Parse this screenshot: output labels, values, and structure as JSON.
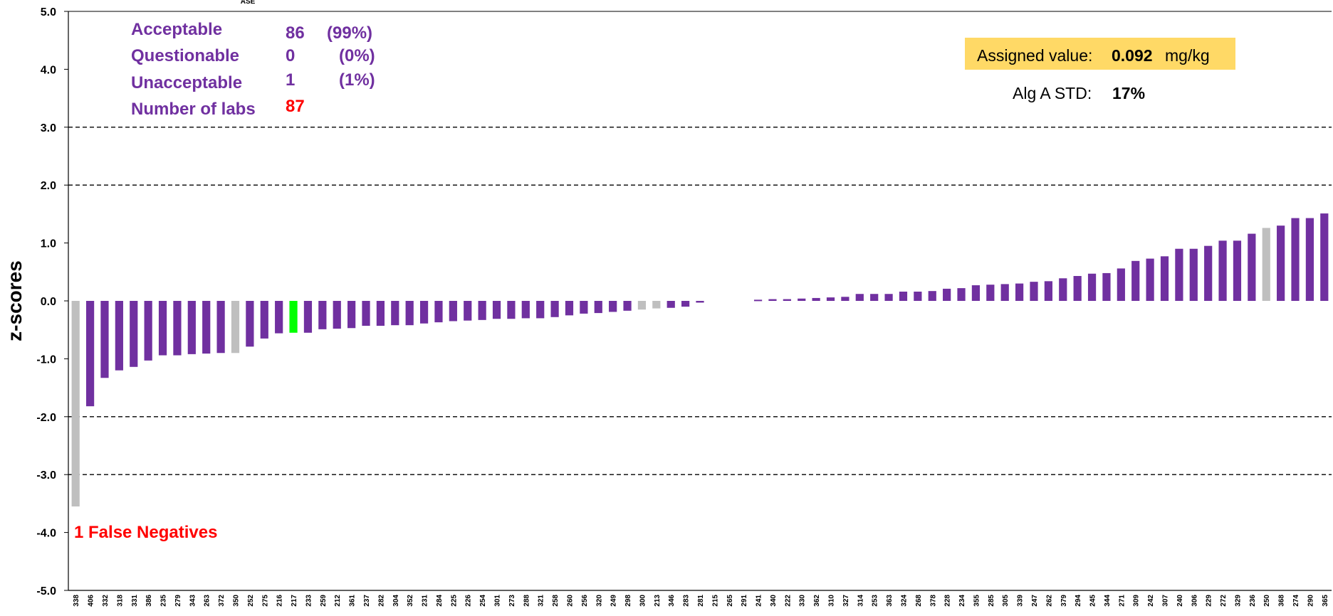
{
  "chart_data": {
    "type": "bar",
    "title": "ASE",
    "ylabel": "z-scores",
    "xlabel": "",
    "ylim": [
      -5.0,
      5.0
    ],
    "yticks": [
      "5.0",
      "4.0",
      "3.0",
      "2.0",
      "1.0",
      "0.0",
      "-1.0",
      "-2.0",
      "-3.0",
      "-4.0",
      "-5.0"
    ],
    "reference_lines": [
      3.0,
      2.0,
      -2.0,
      -3.0
    ],
    "colors": {
      "default": "#7030a0",
      "grey": "#bfbfbf",
      "highlight": "#00ff00"
    },
    "categories": [
      "338",
      "406",
      "332",
      "318",
      "331",
      "386",
      "235",
      "279",
      "343",
      "263",
      "372",
      "350",
      "252",
      "275",
      "216",
      "217",
      "233",
      "259",
      "212",
      "361",
      "237",
      "282",
      "304",
      "352",
      "231",
      "284",
      "225",
      "226",
      "254",
      "301",
      "273",
      "288",
      "321",
      "258",
      "260",
      "256",
      "320",
      "249",
      "298",
      "300",
      "213",
      "346",
      "283",
      "281",
      "215",
      "265",
      "291",
      "241",
      "340",
      "222",
      "330",
      "362",
      "310",
      "327",
      "314",
      "253",
      "363",
      "324",
      "268",
      "378",
      "228",
      "234",
      "355",
      "285",
      "305",
      "339",
      "247",
      "262",
      "379",
      "294",
      "245",
      "344",
      "271",
      "309",
      "242",
      "307",
      "240",
      "306",
      "229",
      "272",
      "329",
      "236",
      "250",
      "368",
      "274",
      "290",
      "365"
    ],
    "values": [
      -3.55,
      -1.82,
      -1.33,
      -1.2,
      -1.14,
      -1.03,
      -0.94,
      -0.94,
      -0.92,
      -0.91,
      -0.9,
      -0.9,
      -0.79,
      -0.65,
      -0.56,
      -0.55,
      -0.55,
      -0.49,
      -0.48,
      -0.47,
      -0.43,
      -0.43,
      -0.42,
      -0.42,
      -0.39,
      -0.37,
      -0.35,
      -0.34,
      -0.33,
      -0.31,
      -0.31,
      -0.3,
      -0.3,
      -0.28,
      -0.25,
      -0.22,
      -0.21,
      -0.19,
      -0.17,
      -0.15,
      -0.13,
      -0.12,
      -0.1,
      -0.03,
      0,
      0,
      0,
      0.02,
      0.03,
      0.03,
      0.04,
      0.05,
      0.06,
      0.07,
      0.12,
      0.12,
      0.12,
      0.16,
      0.16,
      0.17,
      0.21,
      0.22,
      0.27,
      0.28,
      0.29,
      0.3,
      0.33,
      0.34,
      0.39,
      0.43,
      0.47,
      0.48,
      0.56,
      0.69,
      0.73,
      0.77,
      0.9,
      0.9,
      0.95,
      1.04,
      1.04,
      1.16,
      1.26,
      1.3,
      1.43,
      1.43,
      1.51
    ],
    "bar_colors": [
      "grey",
      "default",
      "default",
      "default",
      "default",
      "default",
      "default",
      "default",
      "default",
      "default",
      "default",
      "grey",
      "default",
      "default",
      "default",
      "highlight",
      "default",
      "default",
      "default",
      "default",
      "default",
      "default",
      "default",
      "default",
      "default",
      "default",
      "default",
      "default",
      "default",
      "default",
      "default",
      "default",
      "default",
      "default",
      "default",
      "default",
      "default",
      "default",
      "default",
      "grey",
      "grey",
      "default",
      "default",
      "default",
      "default",
      "default",
      "default",
      "default",
      "default",
      "default",
      "default",
      "default",
      "default",
      "default",
      "default",
      "default",
      "default",
      "default",
      "default",
      "default",
      "default",
      "default",
      "default",
      "default",
      "default",
      "default",
      "default",
      "default",
      "default",
      "default",
      "default",
      "default",
      "default",
      "default",
      "default",
      "default",
      "default",
      "default",
      "default",
      "default",
      "default",
      "default",
      "grey",
      "default",
      "default",
      "default",
      "default"
    ]
  },
  "summary": {
    "acceptable_label": "Acceptable",
    "acceptable_count": "86",
    "acceptable_pct": "(99%)",
    "questionable_label": "Questionable",
    "questionable_count": "0",
    "questionable_pct": "(0%)",
    "unacceptable_label": "Unacceptable",
    "unacceptable_count": "1",
    "unacceptable_pct": "(1%)",
    "labs_label": "Number of labs",
    "labs_count": "87"
  },
  "assigned": {
    "label": "Assigned value:",
    "value": "0.092",
    "unit": "mg/kg",
    "box_color": "#ffd966"
  },
  "std": {
    "label": "Alg A STD:",
    "value": "17%"
  },
  "false_negatives": "1 False Negatives"
}
